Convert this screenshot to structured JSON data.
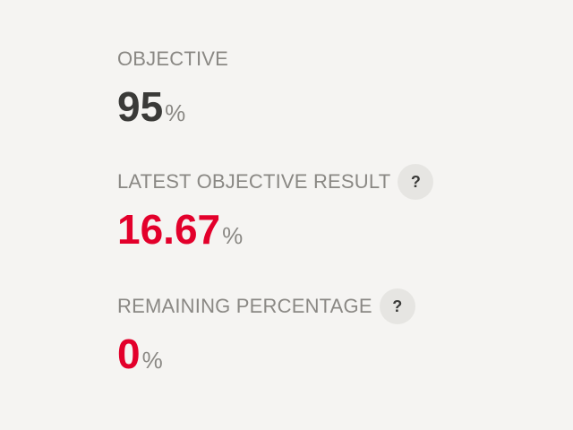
{
  "metrics": [
    {
      "label": "OBJECTIVE",
      "value": "95",
      "unit": "%",
      "value_color": "#3a3a38",
      "has_help": false
    },
    {
      "label": "LATEST OBJECTIVE RESULT",
      "value": "16.67",
      "unit": "%",
      "value_color": "#e3002b",
      "has_help": true,
      "help_icon": "?"
    },
    {
      "label": "REMAINING PERCENTAGE",
      "value": "0",
      "unit": "%",
      "value_color": "#e3002b",
      "has_help": true,
      "help_icon": "?"
    }
  ]
}
